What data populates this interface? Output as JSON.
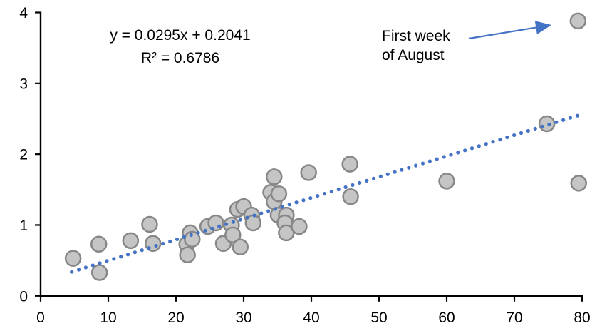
{
  "chart_data": {
    "type": "scatter",
    "title": "",
    "xlabel": "",
    "ylabel": "",
    "xlim": [
      0,
      80
    ],
    "ylim": [
      0,
      4
    ],
    "x_ticks": [
      0,
      10,
      20,
      30,
      40,
      50,
      60,
      70,
      80
    ],
    "y_ticks": [
      0,
      1,
      2,
      3,
      4
    ],
    "grid": false,
    "legend": false,
    "points": [
      [
        4.8,
        0.53
      ],
      [
        8.6,
        0.73
      ],
      [
        8.7,
        0.33
      ],
      [
        13.3,
        0.78
      ],
      [
        16.1,
        1.01
      ],
      [
        16.6,
        0.74
      ],
      [
        21.6,
        0.73
      ],
      [
        21.7,
        0.58
      ],
      [
        22.1,
        0.89
      ],
      [
        22.4,
        0.8
      ],
      [
        24.7,
        0.98
      ],
      [
        25.9,
        1.03
      ],
      [
        27.0,
        0.74
      ],
      [
        28.2,
        1.0
      ],
      [
        28.4,
        0.86
      ],
      [
        29.1,
        1.22
      ],
      [
        30.0,
        1.26
      ],
      [
        29.5,
        0.69
      ],
      [
        31.2,
        1.14
      ],
      [
        31.4,
        1.03
      ],
      [
        34.0,
        1.46
      ],
      [
        34.5,
        1.68
      ],
      [
        34.5,
        1.33
      ],
      [
        35.2,
        1.44
      ],
      [
        35.1,
        1.14
      ],
      [
        36.3,
        1.14
      ],
      [
        36.1,
        1.03
      ],
      [
        36.3,
        0.89
      ],
      [
        38.2,
        0.98
      ],
      [
        39.6,
        1.74
      ],
      [
        45.7,
        1.86
      ],
      [
        45.8,
        1.4
      ],
      [
        60.0,
        1.62
      ],
      [
        74.8,
        2.43
      ],
      [
        79.4,
        3.88
      ],
      [
        79.5,
        1.59
      ]
    ],
    "trendline": {
      "slope": 0.0295,
      "intercept": 0.2041,
      "r_squared": 0.6786,
      "x_start": 4.6,
      "x_end": 79.3,
      "style": "dotted"
    },
    "equation_label": "y = 0.0295x + 0.2041",
    "r2_label": "R² = 0.6786",
    "annotation": {
      "line1": "First week",
      "line2": "of August",
      "target_point": [
        79.4,
        3.88
      ]
    },
    "colors": {
      "trendline": "#4472C4",
      "arrow": "#4472C4",
      "marker_fill": "#C5C5C5",
      "marker_stroke": "#878787",
      "axis": "#000000",
      "text": "#000000",
      "background": "#FFFFFF"
    }
  }
}
